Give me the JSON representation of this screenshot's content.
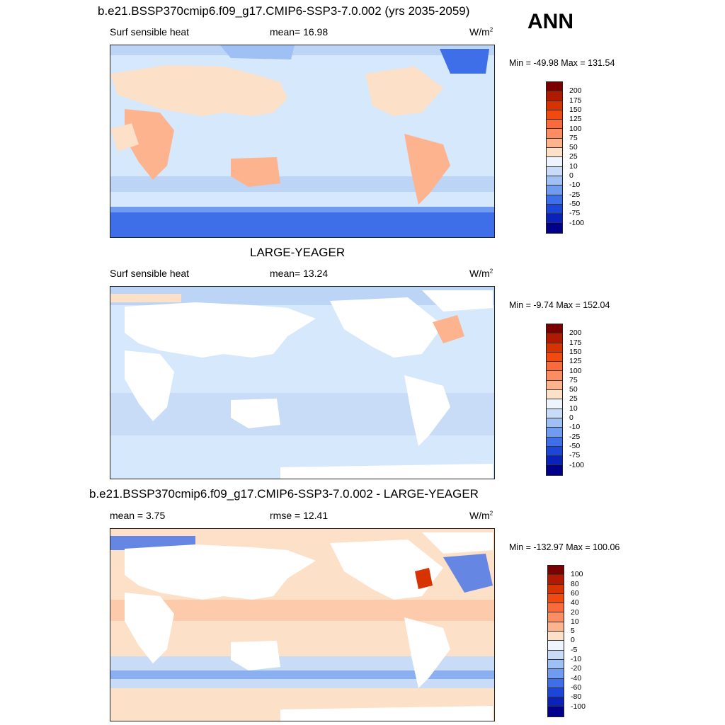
{
  "header": {
    "title_top": "b.e21.BSSP370cmip6.f09_g17.CMIP6-SSP3-7.0.002 (yrs 2035-2059)",
    "season": "ANN"
  },
  "panels": [
    {
      "id": "case",
      "title": "",
      "left_label": "Surf sensible heat",
      "center_label": "mean=  16.98",
      "units": "W/m",
      "units_sup": "2",
      "minmax": "Min = -49.98 Max = 131.54",
      "colorbar": {
        "ticks": [
          "200",
          "175",
          "150",
          "125",
          "100",
          "75",
          "50",
          "25",
          "10",
          "0",
          "-10",
          "-25",
          "-50",
          "-75",
          "-100"
        ],
        "colors": [
          "#7a0000",
          "#b01a00",
          "#d63300",
          "#f04a10",
          "#fb6a3a",
          "#fc8d62",
          "#fdb48e",
          "#fde0c8",
          "#eef4fd",
          "#c8dcf8",
          "#9ec0f4",
          "#6f9cf0",
          "#3f6fe8",
          "#1c46d8",
          "#0a22b8",
          "#00008a"
        ]
      }
    },
    {
      "id": "obs",
      "title": "LARGE-YEAGER",
      "left_label": "Surf sensible heat",
      "center_label": "mean=  13.24",
      "units": "W/m",
      "units_sup": "2",
      "minmax": "Min =  -9.74 Max = 152.04",
      "colorbar": {
        "ticks": [
          "200",
          "175",
          "150",
          "125",
          "100",
          "75",
          "50",
          "25",
          "10",
          "0",
          "-10",
          "-25",
          "-50",
          "-75",
          "-100"
        ],
        "colors": [
          "#7a0000",
          "#b01a00",
          "#d63300",
          "#f04a10",
          "#fb6a3a",
          "#fc8d62",
          "#fdb48e",
          "#fde0c8",
          "#eef4fd",
          "#c8dcf8",
          "#9ec0f4",
          "#6f9cf0",
          "#3f6fe8",
          "#1c46d8",
          "#0a22b8",
          "#00008a"
        ]
      }
    },
    {
      "id": "diff",
      "title": "b.e21.BSSP370cmip6.f09_g17.CMIP6-SSP3-7.0.002 - LARGE-YEAGER",
      "left_label": "mean =   3.75",
      "center_label": "rmse =  12.41",
      "units": "W/m",
      "units_sup": "2",
      "minmax": "Min = -132.97 Max = 100.06",
      "colorbar": {
        "ticks": [
          "100",
          "80",
          "60",
          "40",
          "20",
          "10",
          "5",
          "0",
          "-5",
          "-10",
          "-20",
          "-40",
          "-60",
          "-80",
          "-100"
        ],
        "colors": [
          "#7a0000",
          "#b01a00",
          "#d63300",
          "#f04a10",
          "#fb6a3a",
          "#fc8d62",
          "#fdb48e",
          "#fde0c8",
          "#eef4fd",
          "#c8dcf8",
          "#9ec0f4",
          "#6f9cf0",
          "#3f6fe8",
          "#1c46d8",
          "#0a22b8",
          "#00008a"
        ]
      }
    }
  ]
}
